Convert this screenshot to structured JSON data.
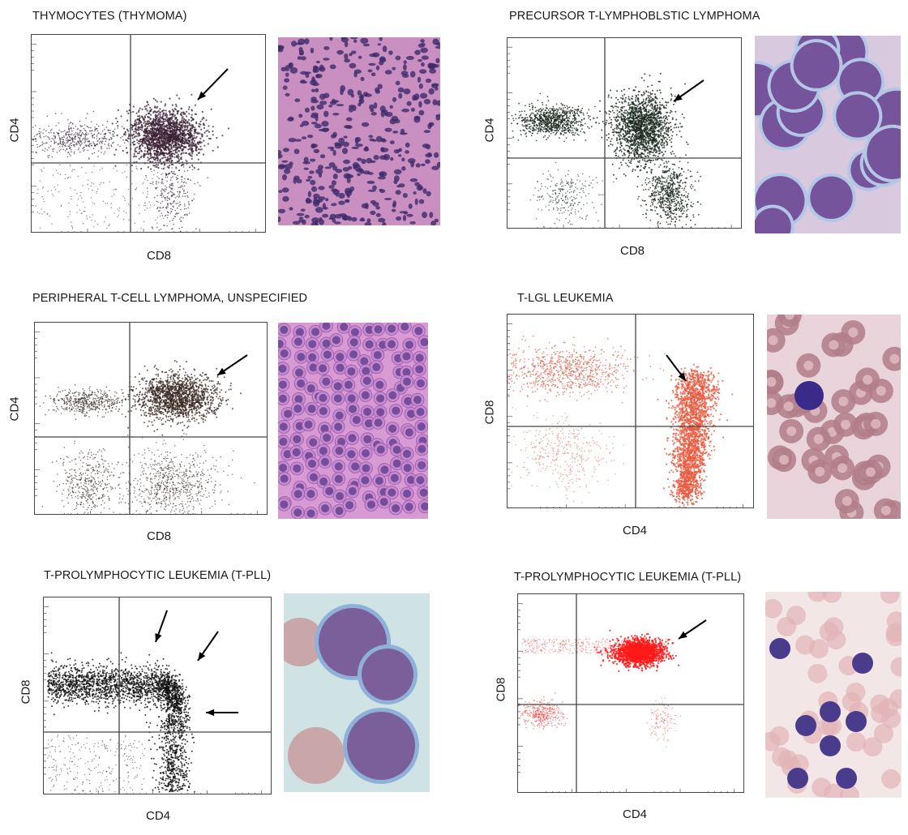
{
  "panels": [
    {
      "id": "p1",
      "title": "THYMOCYTES (THYMOMA)",
      "xlabel": "CD8",
      "ylabel": "CD4",
      "dot_color": "#3a2a3a",
      "cluster_color": "#3b2236"
    },
    {
      "id": "p2",
      "title": "PRECURSOR T-LYMPHOBLSTIC LYMPHOMA",
      "xlabel": "CD8",
      "ylabel": "CD4",
      "dot_color": "#1f2f24",
      "cluster_color": "#1b2a20"
    },
    {
      "id": "p3",
      "title": "PERIPHERAL T-CELL LYMPHOMA, UNSPECIFIED",
      "xlabel": "CD8",
      "ylabel": "CD4",
      "dot_color": "#3a2e2a",
      "cluster_color": "#3a2820"
    },
    {
      "id": "p4",
      "title": "T-LGL LEUKEMIA",
      "xlabel": "CD4",
      "ylabel": "CD8",
      "dot_color": "#d96a55",
      "cluster_color": "#e85a40"
    },
    {
      "id": "p5",
      "title": "T-PROLYMPHOCYTIC LEUKEMIA (T-PLL)",
      "xlabel": "CD4",
      "ylabel": "CD8",
      "dot_color": "#222222",
      "cluster_color": "#111111"
    },
    {
      "id": "p6",
      "title": "T-PROLYMPHOCYTIC LEUKEMIA (T-PLL)",
      "xlabel": "CD4",
      "ylabel": "CD8",
      "dot_color": "#f04040",
      "cluster_color": "#ff1a1a"
    }
  ],
  "micrographs": {
    "m1": {
      "stain": "H&E",
      "bg": "#c98fc0",
      "cell": "#3d2a6a"
    },
    "m2": {
      "stain": "Wright-Giemsa",
      "bg": "#d9c9de",
      "cell": "#6a3f8e"
    },
    "m3": {
      "stain": "H&E",
      "bg": "#d79ad3",
      "cell": "#5a3a8a"
    },
    "m4": {
      "stain": "Wright-Giemsa",
      "bg": "#e8d4da",
      "cell": "#b07d8a"
    },
    "m5": {
      "stain": "Wright-Giemsa",
      "bg": "#cfe2e4",
      "cell": "#7a5f9a"
    },
    "m6": {
      "stain": "Wright-Giemsa",
      "bg": "#f2e6e6",
      "cell": "#4a3c8c"
    }
  }
}
